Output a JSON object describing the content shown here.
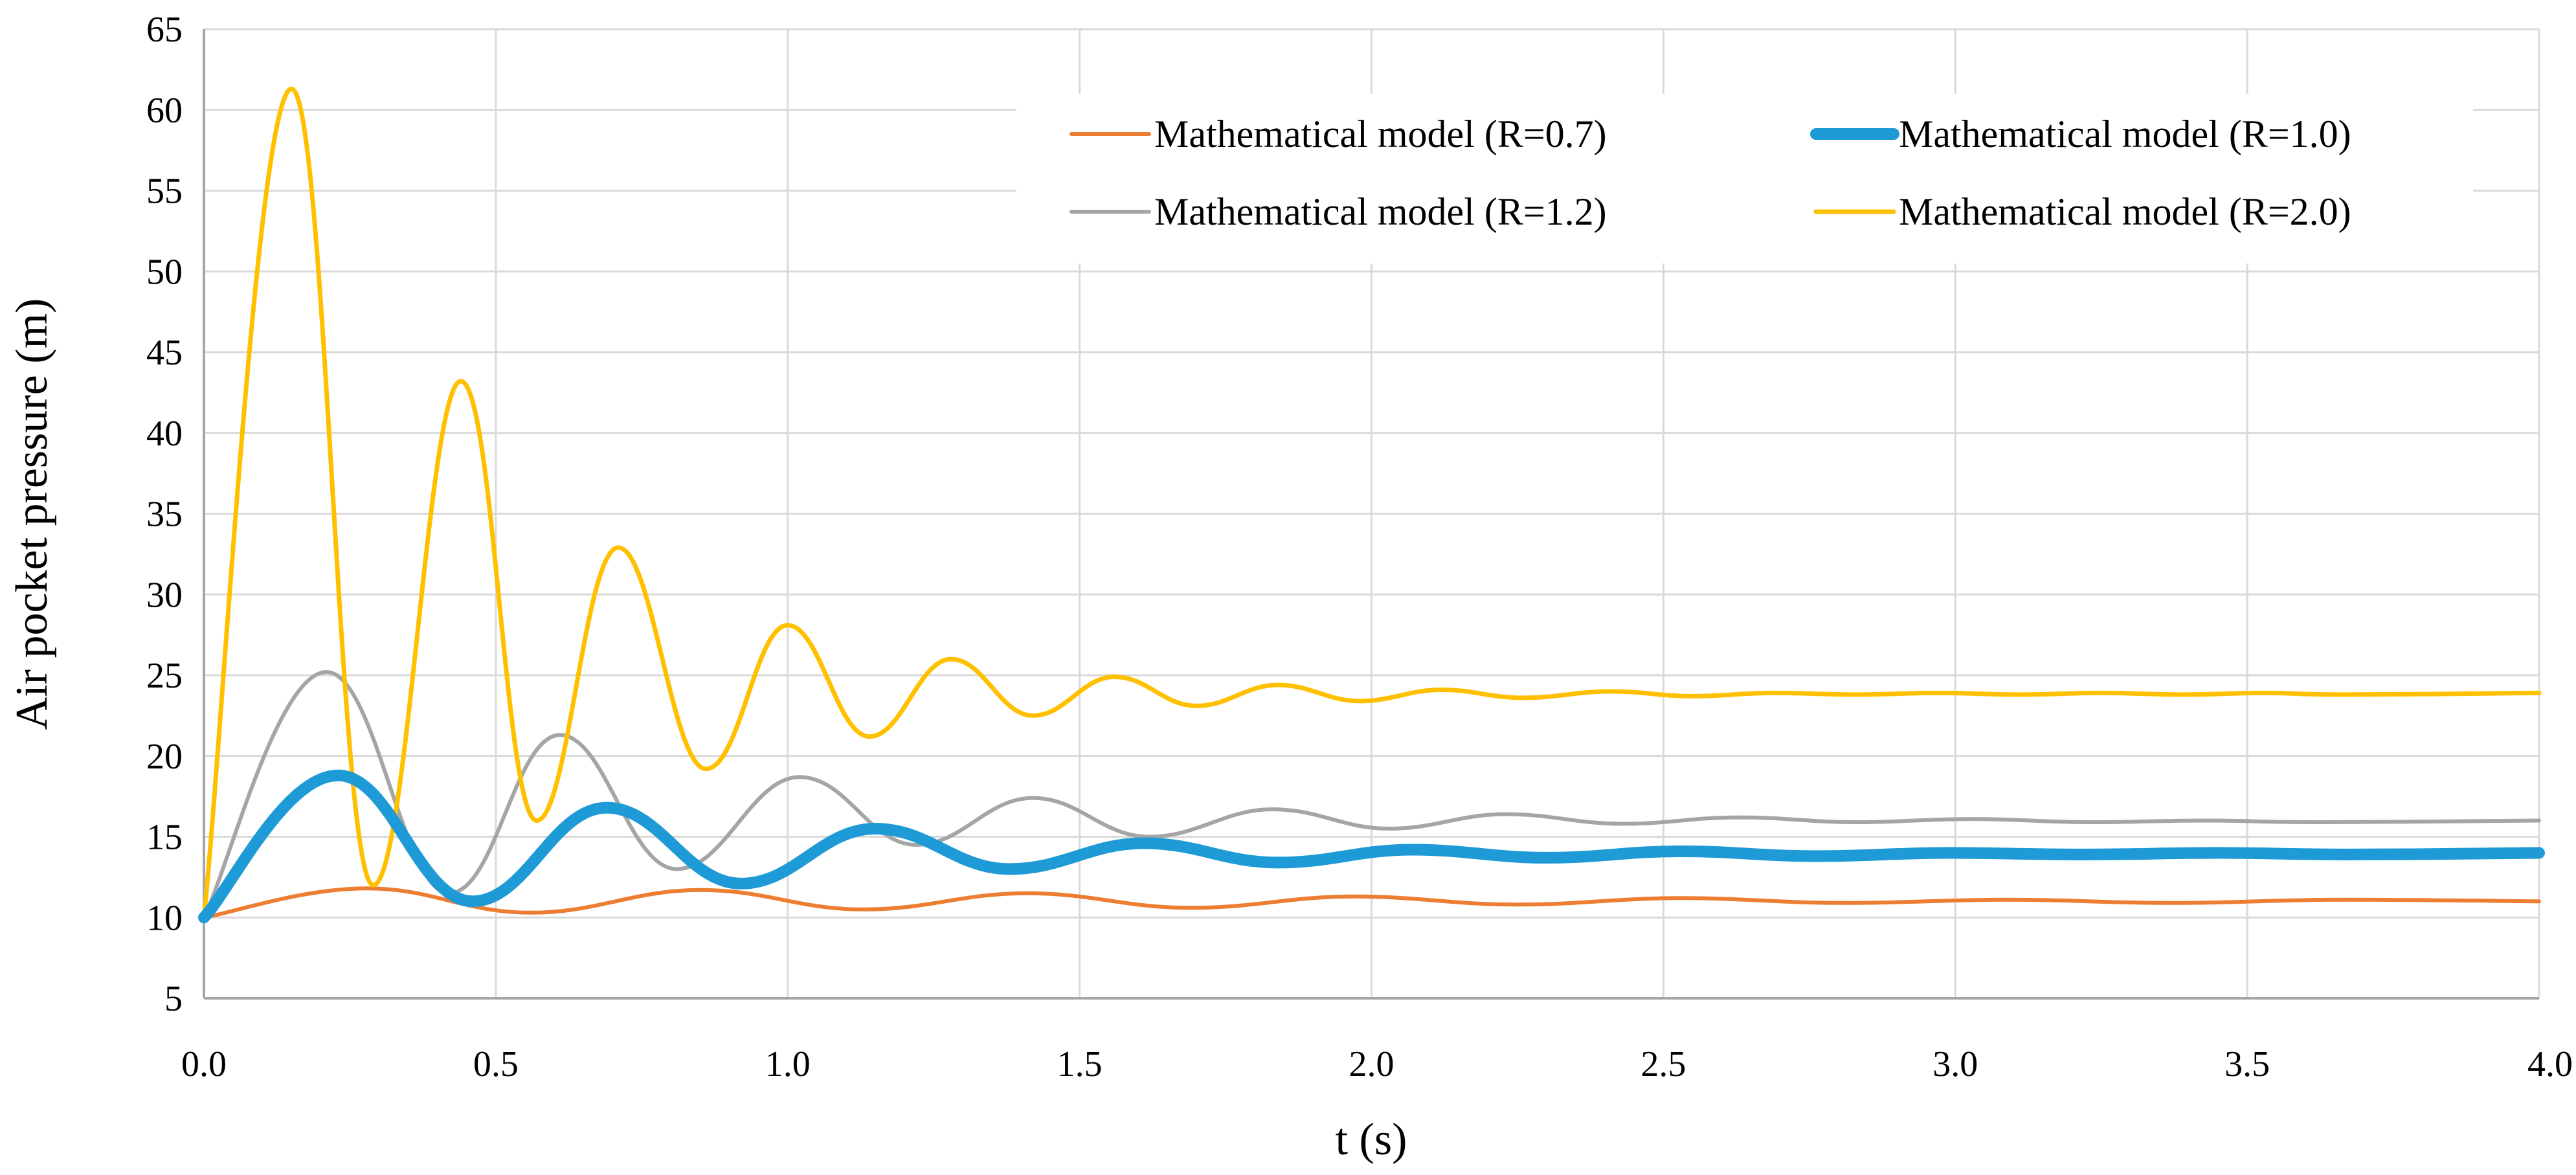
{
  "chart_data": {
    "type": "line",
    "title": "",
    "xlabel": "t (s)",
    "ylabel": "Air pocket pressure (m)",
    "xlim": [
      0,
      4
    ],
    "ylim": [
      5,
      65
    ],
    "xticks": [
      "0.0",
      "0.5",
      "1.0",
      "1.5",
      "2.0",
      "2.5",
      "3.0",
      "3.5",
      "4.0"
    ],
    "yticks": [
      "5",
      "10",
      "15",
      "20",
      "25",
      "30",
      "35",
      "40",
      "45",
      "50",
      "55",
      "60",
      "65"
    ],
    "grid": true,
    "legend_position": "top-right",
    "series": [
      {
        "name": "Mathematical model (R=0.7)",
        "color": "#ED7D31",
        "x": [
          0,
          0.28,
          0.56,
          0.85,
          1.13,
          1.41,
          1.69,
          1.97,
          2.25,
          2.53,
          2.81,
          3.09,
          3.37,
          3.67,
          4.0
        ],
        "y": [
          10,
          11.8,
          10.3,
          11.7,
          10.5,
          11.5,
          10.6,
          11.3,
          10.8,
          11.2,
          10.9,
          11.1,
          10.9,
          11.1,
          11.0
        ]
      },
      {
        "name": "Mathematical model (R=1.0)",
        "color": "#1E9BD7",
        "x": [
          0,
          0.23,
          0.46,
          0.69,
          0.92,
          1.15,
          1.38,
          1.61,
          1.84,
          2.07,
          2.3,
          2.53,
          2.76,
          2.99,
          3.22,
          3.45,
          3.68,
          4.0
        ],
        "y": [
          10,
          18.8,
          11.0,
          16.8,
          12.1,
          15.5,
          13.0,
          14.6,
          13.4,
          14.2,
          13.7,
          14.1,
          13.8,
          14.0,
          13.9,
          14.0,
          13.9,
          14.0
        ]
      },
      {
        "name": "Mathematical model (R=1.2)",
        "color": "#A5A5A5",
        "x": [
          0,
          0.21,
          0.42,
          0.61,
          0.81,
          1.02,
          1.22,
          1.42,
          1.62,
          1.83,
          2.03,
          2.23,
          2.43,
          2.63,
          2.83,
          3.03,
          3.23,
          3.43,
          3.63,
          4.0
        ],
        "y": [
          10,
          25.2,
          11.5,
          21.3,
          13.0,
          18.7,
          14.5,
          17.4,
          15.0,
          16.7,
          15.5,
          16.4,
          15.8,
          16.2,
          15.9,
          16.1,
          15.9,
          16.0,
          15.9,
          16.0
        ]
      },
      {
        "name": "Mathematical model (R=2.0)",
        "color": "#FFC000",
        "x": [
          0,
          0.15,
          0.29,
          0.44,
          0.57,
          0.71,
          0.86,
          1.0,
          1.14,
          1.28,
          1.42,
          1.56,
          1.7,
          1.84,
          1.98,
          2.12,
          2.26,
          2.41,
          2.55,
          2.69,
          2.83,
          2.97,
          3.11,
          3.25,
          3.39,
          3.53,
          3.67,
          4.0
        ],
        "y": [
          10,
          61.3,
          12.0,
          43.2,
          16.0,
          32.9,
          19.2,
          28.1,
          21.2,
          26.0,
          22.5,
          24.9,
          23.1,
          24.4,
          23.4,
          24.1,
          23.6,
          24.0,
          23.7,
          23.9,
          23.8,
          23.9,
          23.8,
          23.9,
          23.8,
          23.9,
          23.8,
          23.9
        ]
      }
    ]
  }
}
